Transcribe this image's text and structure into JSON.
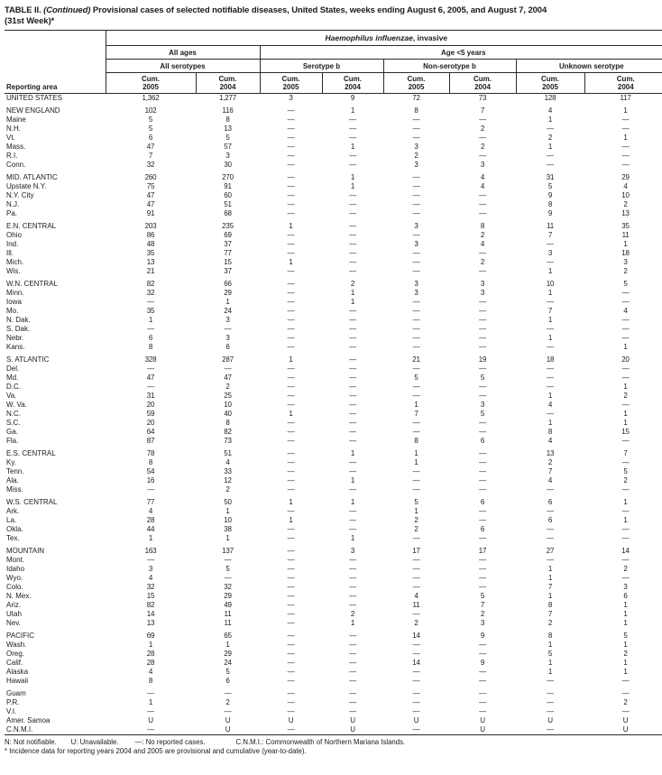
{
  "title": {
    "part1": "TABLE II. ",
    "part2": "(Continued) ",
    "part3": "Provisional cases of selected notifiable diseases, United States, weeks ending August 6, 2005, and August 7, 2004",
    "line2": "(31st Week)*"
  },
  "table": {
    "disease": {
      "italic": "Haemophilus influenzae",
      "rest": ", invasive"
    },
    "age_groups": {
      "all_ages": "All ages",
      "under5": "Age <5 years"
    },
    "serotype_groups": [
      "All serotypes",
      "Serotype b",
      "Non-serotype b",
      "Unknown serotype"
    ],
    "reporting_area_label": "Reporting area",
    "columns": [
      {
        "label": "Cum.",
        "year": "2005"
      },
      {
        "label": "Cum.",
        "year": "2004"
      },
      {
        "label": "Cum.",
        "year": "2005"
      },
      {
        "label": "Cum.",
        "year": "2004"
      },
      {
        "label": "Cum.",
        "year": "2005"
      },
      {
        "label": "Cum.",
        "year": "2004"
      },
      {
        "label": "Cum.",
        "year": "2005"
      },
      {
        "label": "Cum.",
        "year": "2004"
      }
    ],
    "rows": [
      {
        "type": "total",
        "area": "UNITED STATES",
        "v": [
          "1,362",
          "1,277",
          "3",
          "9",
          "72",
          "73",
          "128",
          "117"
        ]
      },
      {
        "type": "gap"
      },
      {
        "type": "region",
        "area": "NEW ENGLAND",
        "v": [
          "102",
          "116",
          "—",
          "1",
          "8",
          "7",
          "4",
          "1"
        ]
      },
      {
        "type": "state",
        "area": "Maine",
        "v": [
          "5",
          "8",
          "—",
          "—",
          "—",
          "—",
          "1",
          "—"
        ]
      },
      {
        "type": "state",
        "area": "N.H.",
        "v": [
          "5",
          "13",
          "—",
          "—",
          "—",
          "2",
          "—",
          "—"
        ]
      },
      {
        "type": "state",
        "area": "Vt.",
        "v": [
          "6",
          "5",
          "—",
          "—",
          "—",
          "—",
          "2",
          "1"
        ]
      },
      {
        "type": "state",
        "area": "Mass.",
        "v": [
          "47",
          "57",
          "—",
          "1",
          "3",
          "2",
          "1",
          "—"
        ]
      },
      {
        "type": "state",
        "area": "R.I.",
        "v": [
          "7",
          "3",
          "—",
          "—",
          "2",
          "—",
          "—",
          "—"
        ]
      },
      {
        "type": "state",
        "area": "Conn.",
        "v": [
          "32",
          "30",
          "—",
          "—",
          "3",
          "3",
          "—",
          "—"
        ]
      },
      {
        "type": "gap"
      },
      {
        "type": "region",
        "area": "MID. ATLANTIC",
        "v": [
          "260",
          "270",
          "—",
          "1",
          "—",
          "4",
          "31",
          "29"
        ]
      },
      {
        "type": "state",
        "area": "Upstate N.Y.",
        "v": [
          "75",
          "91",
          "—",
          "1",
          "—",
          "4",
          "5",
          "4"
        ]
      },
      {
        "type": "state",
        "area": "N.Y. City",
        "v": [
          "47",
          "60",
          "—",
          "—",
          "—",
          "—",
          "9",
          "10"
        ]
      },
      {
        "type": "state",
        "area": "N.J.",
        "v": [
          "47",
          "51",
          "—",
          "—",
          "—",
          "—",
          "8",
          "2"
        ]
      },
      {
        "type": "state",
        "area": "Pa.",
        "v": [
          "91",
          "68",
          "—",
          "—",
          "—",
          "—",
          "9",
          "13"
        ]
      },
      {
        "type": "gap"
      },
      {
        "type": "region",
        "area": "E.N. CENTRAL",
        "v": [
          "203",
          "235",
          "1",
          "—",
          "3",
          "8",
          "11",
          "35"
        ]
      },
      {
        "type": "state",
        "area": "Ohio",
        "v": [
          "86",
          "69",
          "—",
          "—",
          "—",
          "2",
          "7",
          "11"
        ]
      },
      {
        "type": "state",
        "area": "Ind.",
        "v": [
          "48",
          "37",
          "—",
          "—",
          "3",
          "4",
          "—",
          "1"
        ]
      },
      {
        "type": "state",
        "area": "Ill.",
        "v": [
          "35",
          "77",
          "—",
          "—",
          "—",
          "—",
          "3",
          "18"
        ]
      },
      {
        "type": "state",
        "area": "Mich.",
        "v": [
          "13",
          "15",
          "1",
          "—",
          "—",
          "2",
          "—",
          "3"
        ]
      },
      {
        "type": "state",
        "area": "Wis.",
        "v": [
          "21",
          "37",
          "—",
          "—",
          "—",
          "—",
          "1",
          "2"
        ]
      },
      {
        "type": "gap"
      },
      {
        "type": "region",
        "area": "W.N. CENTRAL",
        "v": [
          "82",
          "66",
          "—",
          "2",
          "3",
          "3",
          "10",
          "5"
        ]
      },
      {
        "type": "state",
        "area": "Minn.",
        "v": [
          "32",
          "29",
          "—",
          "1",
          "3",
          "3",
          "1",
          "—"
        ]
      },
      {
        "type": "state",
        "area": "Iowa",
        "v": [
          "—",
          "1",
          "—",
          "1",
          "—",
          "—",
          "—",
          "—"
        ]
      },
      {
        "type": "state",
        "area": "Mo.",
        "v": [
          "35",
          "24",
          "—",
          "—",
          "—",
          "—",
          "7",
          "4"
        ]
      },
      {
        "type": "state",
        "area": "N. Dak.",
        "v": [
          "1",
          "3",
          "—",
          "—",
          "—",
          "—",
          "1",
          "—"
        ]
      },
      {
        "type": "state",
        "area": "S. Dak.",
        "v": [
          "—",
          "—",
          "—",
          "—",
          "—",
          "—",
          "—",
          "—"
        ]
      },
      {
        "type": "state",
        "area": "Nebr.",
        "v": [
          "6",
          "3",
          "—",
          "—",
          "—",
          "—",
          "1",
          "—"
        ]
      },
      {
        "type": "state",
        "area": "Kans.",
        "v": [
          "8",
          "6",
          "—",
          "—",
          "—",
          "—",
          "—",
          "1"
        ]
      },
      {
        "type": "gap"
      },
      {
        "type": "region",
        "area": "S. ATLANTIC",
        "v": [
          "328",
          "287",
          "1",
          "—",
          "21",
          "19",
          "18",
          "20"
        ]
      },
      {
        "type": "state",
        "area": "Del.",
        "v": [
          "—",
          "—",
          "—",
          "—",
          "—",
          "—",
          "—",
          "—"
        ]
      },
      {
        "type": "state",
        "area": "Md.",
        "v": [
          "47",
          "47",
          "—",
          "—",
          "5",
          "5",
          "—",
          "—"
        ]
      },
      {
        "type": "state",
        "area": "D.C.",
        "v": [
          "—",
          "2",
          "—",
          "—",
          "—",
          "—",
          "—",
          "1"
        ]
      },
      {
        "type": "state",
        "area": "Va.",
        "v": [
          "31",
          "25",
          "—",
          "—",
          "—",
          "—",
          "1",
          "2"
        ]
      },
      {
        "type": "state",
        "area": "W. Va.",
        "v": [
          "20",
          "10",
          "—",
          "—",
          "1",
          "3",
          "4",
          "—"
        ]
      },
      {
        "type": "state",
        "area": "N.C.",
        "v": [
          "59",
          "40",
          "1",
          "—",
          "7",
          "5",
          "—",
          "1"
        ]
      },
      {
        "type": "state",
        "area": "S.C.",
        "v": [
          "20",
          "8",
          "—",
          "—",
          "—",
          "—",
          "1",
          "1"
        ]
      },
      {
        "type": "state",
        "area": "Ga.",
        "v": [
          "64",
          "82",
          "—",
          "—",
          "—",
          "—",
          "8",
          "15"
        ]
      },
      {
        "type": "state",
        "area": "Fla.",
        "v": [
          "87",
          "73",
          "—",
          "—",
          "8",
          "6",
          "4",
          "—"
        ]
      },
      {
        "type": "gap"
      },
      {
        "type": "region",
        "area": "E.S. CENTRAL",
        "v": [
          "78",
          "51",
          "—",
          "1",
          "1",
          "—",
          "13",
          "7"
        ]
      },
      {
        "type": "state",
        "area": "Ky.",
        "v": [
          "8",
          "4",
          "—",
          "—",
          "1",
          "—",
          "2",
          "—"
        ]
      },
      {
        "type": "state",
        "area": "Tenn.",
        "v": [
          "54",
          "33",
          "—",
          "—",
          "—",
          "—",
          "7",
          "5"
        ]
      },
      {
        "type": "state",
        "area": "Ala.",
        "v": [
          "16",
          "12",
          "—",
          "1",
          "—",
          "—",
          "4",
          "2"
        ]
      },
      {
        "type": "state",
        "area": "Miss.",
        "v": [
          "—",
          "2",
          "—",
          "—",
          "—",
          "—",
          "—",
          "—"
        ]
      },
      {
        "type": "gap"
      },
      {
        "type": "region",
        "area": "W.S. CENTRAL",
        "v": [
          "77",
          "50",
          "1",
          "1",
          "5",
          "6",
          "6",
          "1"
        ]
      },
      {
        "type": "state",
        "area": "Ark.",
        "v": [
          "4",
          "1",
          "—",
          "—",
          "1",
          "—",
          "—",
          "—"
        ]
      },
      {
        "type": "state",
        "area": "La.",
        "v": [
          "28",
          "10",
          "1",
          "—",
          "2",
          "—",
          "6",
          "1"
        ]
      },
      {
        "type": "state",
        "area": "Okla.",
        "v": [
          "44",
          "38",
          "—",
          "—",
          "2",
          "6",
          "—",
          "—"
        ]
      },
      {
        "type": "state",
        "area": "Tex.",
        "v": [
          "1",
          "1",
          "—",
          "1",
          "—",
          "—",
          "—",
          "—"
        ]
      },
      {
        "type": "gap"
      },
      {
        "type": "region",
        "area": "MOUNTAIN",
        "v": [
          "163",
          "137",
          "—",
          "3",
          "17",
          "17",
          "27",
          "14"
        ]
      },
      {
        "type": "state",
        "area": "Mont.",
        "v": [
          "—",
          "—",
          "—",
          "—",
          "—",
          "—",
          "—",
          "—"
        ]
      },
      {
        "type": "state",
        "area": "Idaho",
        "v": [
          "3",
          "5",
          "—",
          "—",
          "—",
          "—",
          "1",
          "2"
        ]
      },
      {
        "type": "state",
        "area": "Wyo.",
        "v": [
          "4",
          "—",
          "—",
          "—",
          "—",
          "—",
          "1",
          "—"
        ]
      },
      {
        "type": "state",
        "area": "Colo.",
        "v": [
          "32",
          "32",
          "—",
          "—",
          "—",
          "—",
          "7",
          "3"
        ]
      },
      {
        "type": "state",
        "area": "N. Mex.",
        "v": [
          "15",
          "29",
          "—",
          "—",
          "4",
          "5",
          "1",
          "6"
        ]
      },
      {
        "type": "state",
        "area": "Ariz.",
        "v": [
          "82",
          "49",
          "—",
          "—",
          "11",
          "7",
          "8",
          "1"
        ]
      },
      {
        "type": "state",
        "area": "Utah",
        "v": [
          "14",
          "11",
          "—",
          "2",
          "—",
          "2",
          "7",
          "1"
        ]
      },
      {
        "type": "state",
        "area": "Nev.",
        "v": [
          "13",
          "11",
          "—",
          "1",
          "2",
          "3",
          "2",
          "1"
        ]
      },
      {
        "type": "gap"
      },
      {
        "type": "region",
        "area": "PACIFIC",
        "v": [
          "69",
          "65",
          "—",
          "—",
          "14",
          "9",
          "8",
          "5"
        ]
      },
      {
        "type": "state",
        "area": "Wash.",
        "v": [
          "1",
          "1",
          "—",
          "—",
          "—",
          "—",
          "1",
          "1"
        ]
      },
      {
        "type": "state",
        "area": "Oreg.",
        "v": [
          "28",
          "29",
          "—",
          "—",
          "—",
          "—",
          "5",
          "2"
        ]
      },
      {
        "type": "state",
        "area": "Calif.",
        "v": [
          "28",
          "24",
          "—",
          "—",
          "14",
          "9",
          "1",
          "1"
        ]
      },
      {
        "type": "state",
        "area": "Alaska",
        "v": [
          "4",
          "5",
          "—",
          "—",
          "—",
          "—",
          "1",
          "1"
        ]
      },
      {
        "type": "state",
        "area": "Hawaii",
        "v": [
          "8",
          "6",
          "—",
          "—",
          "—",
          "—",
          "—",
          "—"
        ]
      },
      {
        "type": "gap"
      },
      {
        "type": "territory",
        "area": "Guam",
        "v": [
          "—",
          "—",
          "—",
          "—",
          "—",
          "—",
          "—",
          "—"
        ]
      },
      {
        "type": "territory",
        "area": "P.R.",
        "v": [
          "1",
          "2",
          "—",
          "—",
          "—",
          "—",
          "—",
          "2"
        ]
      },
      {
        "type": "territory",
        "area": "V.I.",
        "v": [
          "—",
          "—",
          "—",
          "—",
          "—",
          "—",
          "—",
          "—"
        ]
      },
      {
        "type": "territory",
        "area": "Amer. Samoa",
        "v": [
          "U",
          "U",
          "U",
          "U",
          "U",
          "U",
          "U",
          "U"
        ]
      },
      {
        "type": "territory",
        "area": "C.N.M.I.",
        "v": [
          "—",
          "U",
          "—",
          "U",
          "—",
          "U",
          "—",
          "U"
        ]
      }
    ]
  },
  "footnotes": {
    "not_notifiable": "N: Not notifiable.",
    "unavailable": "U: Unavailable.",
    "no_reported_cases": "—: No reported cases.",
    "cnmi": "C.N.M.I.: Commonwealth of Northern Mariana Islands.",
    "incidence": "* Incidence data for reporting years 2004 and 2005 are provisional and cumulative (year-to-date)."
  }
}
